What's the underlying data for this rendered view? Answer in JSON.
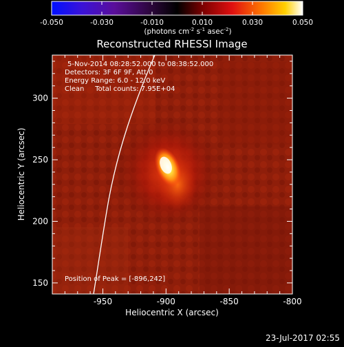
{
  "colorbar": {
    "tick_labels": [
      "-0.050",
      "-0.030",
      "-0.010",
      "0.010",
      "0.030",
      "0.050"
    ],
    "unit_label": {
      "base": "(photons cm",
      "e1": "-2",
      "mid": " s",
      "e2": "-1",
      "tail": " asec",
      "e3": "-2",
      "close": ")"
    },
    "min": -0.05,
    "max": 0.05
  },
  "title": "Reconstructed RHESSI Image",
  "info_lines": [
    "5-Nov-2014 08:28:52.000 to 08:38:52.000",
    "Detectors: 3F 6F 9F, Att 0",
    "Energy Range: 6.0 - 12.0 keV",
    "Clean     Total counts: 7.95E+04"
  ],
  "peak_label": "Position of Peak = [-896,242]",
  "axes": {
    "xlabel": "Heliocentric X (arcsec)",
    "ylabel": "Heliocentric Y (arcsec)",
    "xticks": [
      "-950",
      "-900",
      "-850",
      "-800"
    ],
    "yticks": [
      "150",
      "200",
      "250",
      "300"
    ],
    "xlim": [
      -990,
      -800
    ],
    "ylim": [
      141,
      335
    ]
  },
  "timestamp": "23-Jul-2017 02:55"
}
